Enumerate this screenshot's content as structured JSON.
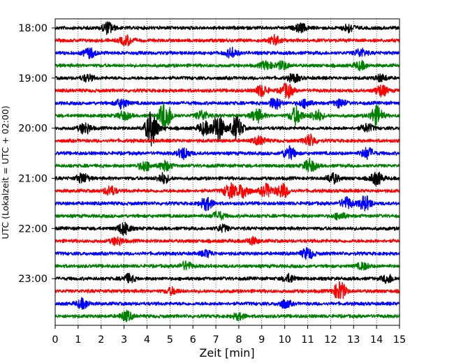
{
  "chart_data": {
    "type": "line",
    "title": "",
    "xlabel": "Zeit  [min]",
    "ylabel": "UTC (Lokalzeit = UTC + 02:00)",
    "xlim": [
      0,
      15
    ],
    "x_ticks": [
      0,
      1,
      2,
      3,
      4,
      5,
      6,
      7,
      8,
      9,
      10,
      11,
      12,
      13,
      14,
      15
    ],
    "x_grid": true,
    "x_grid_style": "dotted",
    "y_tick_labels": [
      "18:00",
      "19:00",
      "20:00",
      "21:00",
      "22:00",
      "23:00"
    ],
    "trace_interval_min": 15,
    "trace_colors": [
      "#000000",
      "#ff0000",
      "#0000ff",
      "#008000"
    ],
    "series": [
      {
        "start": "18:00",
        "bursts": [
          [
            2.3,
            0.7
          ],
          [
            10.7,
            0.5
          ],
          [
            12.8,
            0.5
          ]
        ]
      },
      {
        "start": "18:15",
        "bursts": [
          [
            3.1,
            0.6
          ],
          [
            9.6,
            0.6
          ]
        ]
      },
      {
        "start": "18:30",
        "bursts": [
          [
            1.5,
            0.6
          ],
          [
            7.7,
            0.6
          ],
          [
            13.3,
            0.5
          ]
        ]
      },
      {
        "start": "18:45",
        "bursts": [
          [
            9.2,
            0.5
          ],
          [
            9.9,
            0.5
          ],
          [
            13.3,
            0.5
          ]
        ]
      },
      {
        "start": "19:00",
        "bursts": [
          [
            1.4,
            0.4
          ],
          [
            10.4,
            0.5
          ],
          [
            14.2,
            0.4
          ]
        ]
      },
      {
        "start": "19:15",
        "bursts": [
          [
            9.0,
            0.7
          ],
          [
            10.1,
            0.9
          ],
          [
            14.2,
            0.7
          ]
        ]
      },
      {
        "start": "19:30",
        "bursts": [
          [
            2.9,
            0.6
          ],
          [
            9.6,
            0.7
          ],
          [
            10.9,
            0.5
          ],
          [
            12.4,
            0.5
          ]
        ]
      },
      {
        "start": "19:45",
        "bursts": [
          [
            3.0,
            0.5
          ],
          [
            4.8,
            1.9
          ],
          [
            6.4,
            0.6
          ],
          [
            8.8,
            0.8
          ],
          [
            10.5,
            1.1
          ],
          [
            11.4,
            0.7
          ],
          [
            14.0,
            1.2
          ]
        ]
      },
      {
        "start": "20:00",
        "bursts": [
          [
            1.3,
            0.7
          ],
          [
            4.2,
            2.2
          ],
          [
            6.5,
            0.8
          ],
          [
            7.1,
            1.7
          ],
          [
            7.9,
            1.4
          ],
          [
            13.6,
            0.5
          ]
        ]
      },
      {
        "start": "20:15",
        "bursts": [
          [
            8.9,
            0.5
          ],
          [
            11.1,
            0.7
          ]
        ]
      },
      {
        "start": "20:30",
        "bursts": [
          [
            5.6,
            0.7
          ],
          [
            10.2,
            0.8
          ],
          [
            13.6,
            0.7
          ]
        ]
      },
      {
        "start": "20:45",
        "bursts": [
          [
            3.9,
            0.6
          ],
          [
            4.8,
            0.6
          ],
          [
            11.1,
            0.8
          ]
        ]
      },
      {
        "start": "21:00",
        "bursts": [
          [
            1.2,
            0.6
          ],
          [
            4.7,
            0.6
          ],
          [
            12.1,
            0.6
          ],
          [
            14.0,
            0.8
          ]
        ]
      },
      {
        "start": "21:15",
        "bursts": [
          [
            2.4,
            0.6
          ],
          [
            7.6,
            0.9
          ],
          [
            8.2,
            0.9
          ],
          [
            9.2,
            0.8
          ],
          [
            9.9,
            0.9
          ]
        ]
      },
      {
        "start": "21:30",
        "bursts": [
          [
            6.6,
            0.8
          ],
          [
            12.7,
            0.7
          ],
          [
            13.5,
            0.9
          ]
        ]
      },
      {
        "start": "21:45",
        "bursts": [
          [
            7.1,
            0.5
          ],
          [
            12.4,
            0.4
          ]
        ]
      },
      {
        "start": "22:00",
        "bursts": [
          [
            3.0,
            0.8
          ],
          [
            7.3,
            0.4
          ]
        ]
      },
      {
        "start": "22:15",
        "bursts": [
          [
            2.7,
            0.5
          ],
          [
            8.6,
            0.4
          ]
        ]
      },
      {
        "start": "22:30",
        "bursts": [
          [
            11.0,
            0.7
          ],
          [
            6.6,
            0.4
          ]
        ]
      },
      {
        "start": "22:45",
        "bursts": [
          [
            5.7,
            0.5
          ],
          [
            13.4,
            0.4
          ]
        ]
      },
      {
        "start": "23:00",
        "bursts": [
          [
            3.2,
            0.5
          ],
          [
            10.2,
            0.5
          ],
          [
            14.5,
            0.5
          ]
        ]
      },
      {
        "start": "23:15",
        "bursts": [
          [
            12.4,
            1.2
          ],
          [
            5.1,
            0.4
          ]
        ]
      },
      {
        "start": "23:30",
        "bursts": [
          [
            1.2,
            0.6
          ],
          [
            10.0,
            0.5
          ]
        ]
      },
      {
        "start": "23:45",
        "bursts": [
          [
            3.1,
            0.6
          ],
          [
            8.0,
            0.4
          ]
        ]
      }
    ]
  }
}
